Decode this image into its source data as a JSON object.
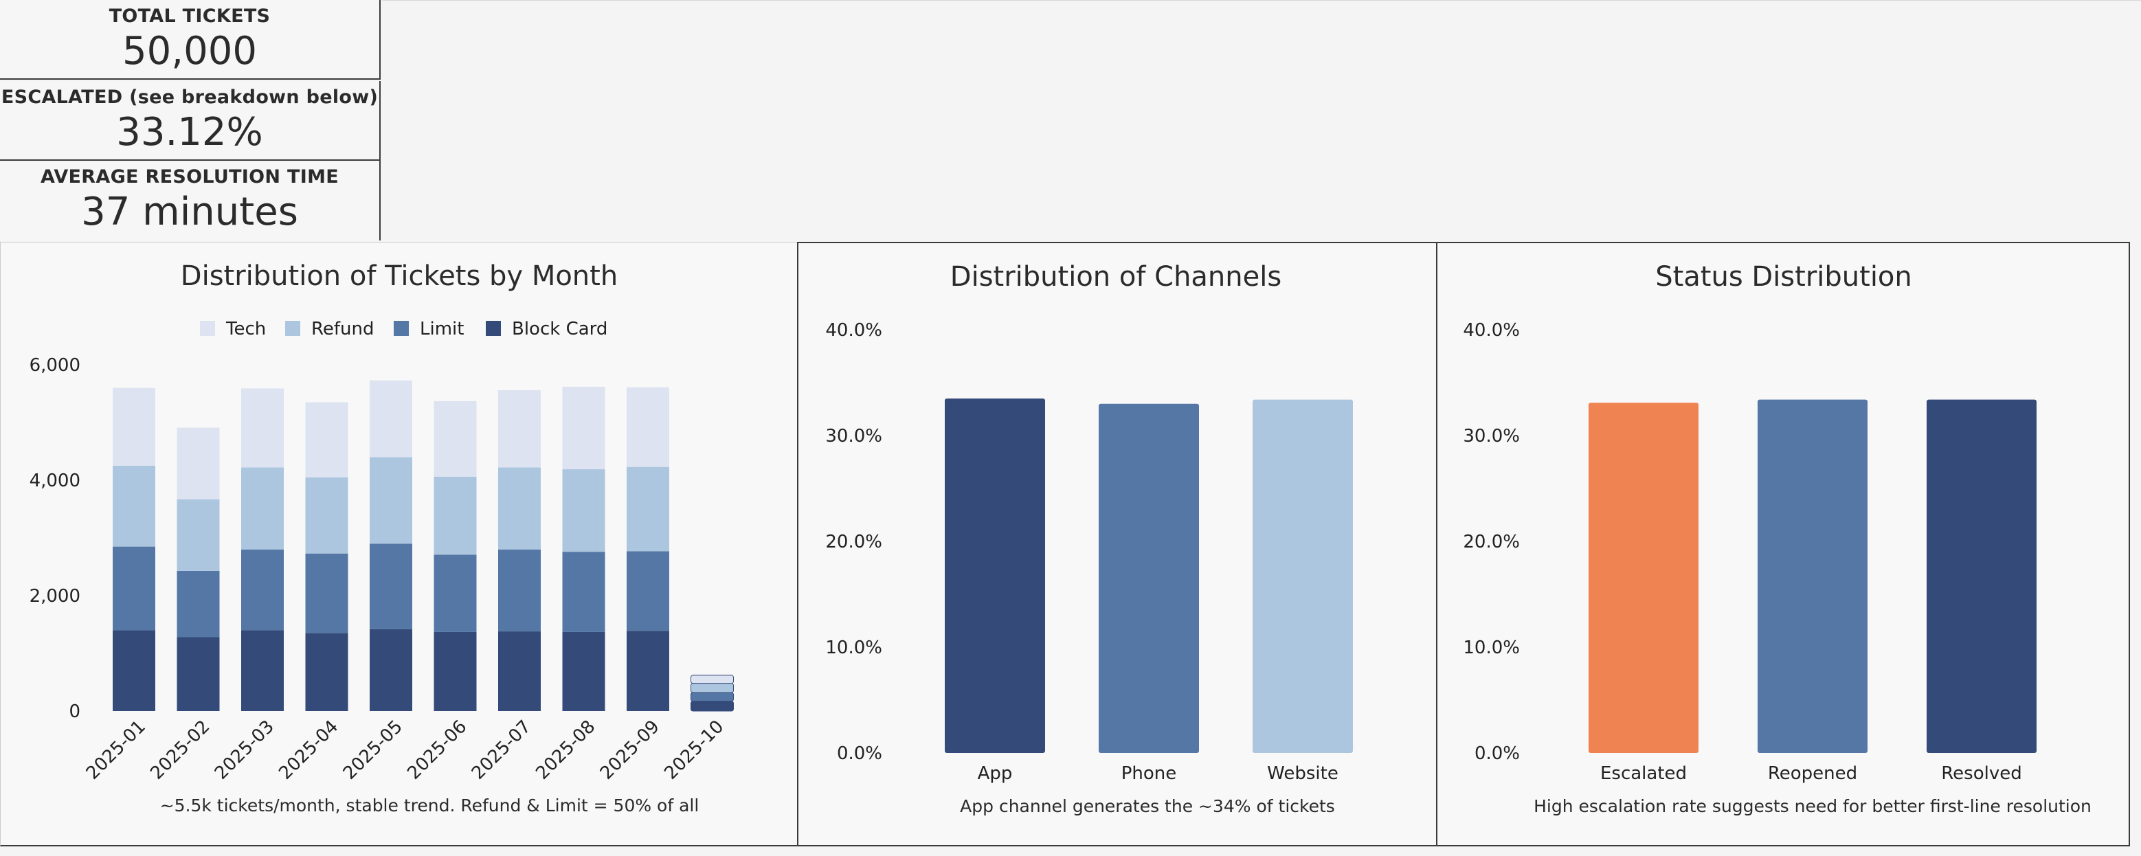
{
  "kpis": [
    {
      "label": "TOTAL TICKETS",
      "value": "50,000"
    },
    {
      "label": "ESCALATED (see breakdown below)",
      "value": "33.12%"
    },
    {
      "label": "AVERAGE RESOLUTION TIME",
      "value": "37 minutes"
    }
  ],
  "colors": {
    "tech": "#dde3f0",
    "refund": "#adc6df",
    "limit": "#5577a5",
    "block_card": "#344a78",
    "escalated": "#ef8452"
  },
  "chart_data": [
    {
      "type": "bar",
      "stacked": true,
      "title": "Distribution of Tickets by Month",
      "categories": [
        "2025-01",
        "2025-02",
        "2025-03",
        "2025-04",
        "2025-05",
        "2025-06",
        "2025-07",
        "2025-08",
        "2025-09",
        "2025-10"
      ],
      "series": [
        {
          "name": "Block Card",
          "values": [
            1400,
            1280,
            1400,
            1350,
            1420,
            1370,
            1380,
            1370,
            1390,
            170
          ]
        },
        {
          "name": "Limit",
          "values": [
            1450,
            1150,
            1400,
            1380,
            1480,
            1340,
            1420,
            1390,
            1380,
            150
          ]
        },
        {
          "name": "Refund",
          "values": [
            1400,
            1240,
            1420,
            1320,
            1500,
            1350,
            1420,
            1430,
            1460,
            160
          ]
        },
        {
          "name": "Tech",
          "values": [
            1350,
            1240,
            1370,
            1300,
            1330,
            1310,
            1340,
            1430,
            1380,
            140
          ]
        }
      ],
      "legend_order": [
        "Tech",
        "Refund",
        "Limit",
        "Block Card"
      ],
      "legend_position": "top",
      "ylim": [
        0,
        6000
      ],
      "yticks": [
        "0",
        "2,000",
        "4,000",
        "6,000"
      ],
      "ytick_values": [
        0,
        2000,
        4000,
        6000
      ],
      "grid": false,
      "note": "~5.5k tickets/month, stable trend. Refund & Limit = 50% of all"
    },
    {
      "type": "bar",
      "title": "Distribution of Channels",
      "categories": [
        "App",
        "Phone",
        "Website"
      ],
      "values": [
        0.335,
        0.33,
        0.334
      ],
      "ylim": [
        0,
        0.4
      ],
      "yticks": [
        "0.0%",
        "10.0%",
        "20.0%",
        "30.0%",
        "40.0%"
      ],
      "ytick_values": [
        0,
        0.1,
        0.2,
        0.3,
        0.4
      ],
      "grid": false,
      "note": "App channel generates the ~34% of tickets"
    },
    {
      "type": "bar",
      "title": "Status Distribution",
      "categories": [
        "Escalated",
        "Reopened",
        "Resolved"
      ],
      "values": [
        0.331,
        0.334,
        0.334
      ],
      "ylim": [
        0,
        0.4
      ],
      "yticks": [
        "0.0%",
        "10.0%",
        "20.0%",
        "30.0%",
        "40.0%"
      ],
      "ytick_values": [
        0,
        0.1,
        0.2,
        0.3,
        0.4
      ],
      "grid": false,
      "note": "High escalation rate suggests need for better first-line resolution"
    }
  ]
}
